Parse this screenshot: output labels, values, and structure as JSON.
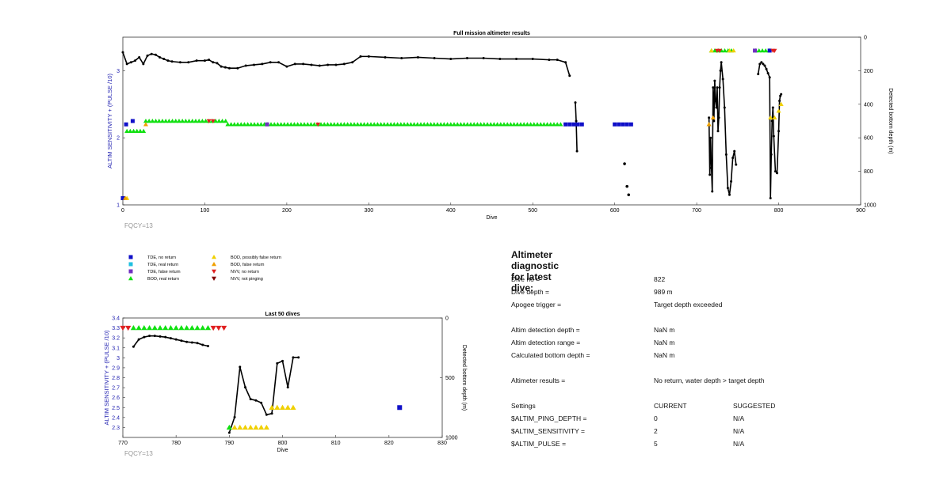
{
  "chart_data": [
    {
      "type": "scatter",
      "title": "Full mission altimeter results",
      "xlabel": "Dive",
      "ylabel_left": "ALTIM SENSITIVITY + (PULSE /10)",
      "ylabel_right": "Detected bottom depth (m)",
      "xlim": [
        0,
        900
      ],
      "ylim_left": [
        1,
        3.5
      ],
      "ylim_right": [
        0,
        1000
      ],
      "xticks": [
        "0",
        "100",
        "200",
        "300",
        "400",
        "500",
        "600",
        "700",
        "800",
        "900"
      ],
      "yticks_left": [
        "1",
        "2",
        "3"
      ],
      "yticks_right": [
        "0",
        "200",
        "400",
        "600",
        "800",
        "1000"
      ],
      "note": "FQCY=13",
      "bottom_depth_curve": {
        "x": [
          0,
          5,
          10,
          15,
          20,
          25,
          30,
          35,
          40,
          45,
          50,
          55,
          60,
          70,
          80,
          90,
          100,
          105,
          110,
          115,
          120,
          125,
          130,
          140,
          150,
          160,
          170,
          180,
          190,
          200,
          210,
          220,
          230,
          240,
          250,
          260,
          270,
          280,
          290,
          300,
          320,
          340,
          360,
          380,
          400,
          420,
          440,
          460,
          480,
          500,
          520,
          530,
          540,
          545
        ],
        "y": [
          90,
          160,
          150,
          140,
          120,
          160,
          110,
          100,
          105,
          120,
          130,
          140,
          145,
          150,
          150,
          140,
          140,
          135,
          150,
          155,
          175,
          180,
          185,
          185,
          170,
          165,
          160,
          150,
          150,
          175,
          160,
          160,
          165,
          170,
          165,
          165,
          160,
          150,
          115,
          115,
          120,
          125,
          120,
          125,
          130,
          125,
          125,
          130,
          130,
          130,
          135,
          135,
          150,
          230
        ]
      },
      "bottom_depth_curve_2": {
        "x": [
          552,
          553,
          554
        ],
        "y": [
          390,
          500,
          680
        ]
      },
      "bottom_depth_points": {
        "x": [
          612,
          615,
          617
        ],
        "y": [
          755,
          890,
          940
        ]
      },
      "bottom_depth_curve_3": {
        "x": [
          715,
          716,
          717,
          718,
          719,
          720,
          721,
          722,
          723,
          724,
          725,
          726,
          727,
          728,
          729,
          730,
          732,
          734,
          736,
          738,
          740,
          742,
          744,
          746,
          748
        ],
        "y": [
          480,
          820,
          600,
          780,
          920,
          300,
          500,
          260,
          380,
          420,
          300,
          560,
          480,
          300,
          200,
          150,
          250,
          420,
          700,
          900,
          940,
          860,
          720,
          680,
          760
        ]
      },
      "bottom_depth_curve_4": {
        "x": [
          775,
          777,
          779,
          781,
          783,
          785,
          787,
          789,
          790,
          791,
          792,
          793,
          794,
          796,
          798,
          800,
          801,
          802,
          803
        ],
        "y": [
          220,
          160,
          150,
          160,
          170,
          190,
          215,
          240,
          960,
          700,
          500,
          420,
          590,
          800,
          810,
          560,
          380,
          350,
          340
        ]
      },
      "series": [
        {
          "name": "TDE, no return",
          "color": "#1010c8",
          "marker": "square",
          "x": [
            0,
            4,
            12,
            540,
            545,
            550,
            555,
            560,
            600,
            605,
            610,
            615,
            620,
            789
          ],
          "y": [
            1.1,
            2.2,
            2.25,
            2.2,
            2.2,
            2.2,
            2.2,
            2.2,
            2.2,
            2.2,
            2.2,
            2.2,
            2.2,
            3.3
          ]
        },
        {
          "name": "BOD, real return",
          "color": "#10e010",
          "band_segments": [
            {
              "x0": 5,
              "x1": 28,
              "y": 2.1
            },
            {
              "x0": 28,
              "x1": 128,
              "y": 2.25
            },
            {
              "x0": 128,
              "x1": 538,
              "y": 2.2
            },
            {
              "x0": 718,
              "x1": 745,
              "y": 3.3
            },
            {
              "x0": 772,
              "x1": 792,
              "y": 3.3
            }
          ],
          "marker": "triangle-up"
        },
        {
          "name": "BOD, possibly false return",
          "color": "#f0d000",
          "marker": "triangle-up",
          "x": [
            5,
            715,
            718,
            740,
            745,
            790,
            795,
            800,
            803
          ],
          "y": [
            1.1,
            2.2,
            3.3,
            3.3,
            3.3,
            2.3,
            2.3,
            2.4,
            2.5
          ]
        },
        {
          "name": "BOD, false return",
          "color": "#f0a000",
          "marker": "triangle-up",
          "x": [
            3,
            28,
            715,
            720
          ],
          "y": [
            1.1,
            2.2,
            2.2,
            2.3
          ]
        },
        {
          "name": "NVV, no return",
          "color": "#e02020",
          "marker": "triangle-down",
          "x": [
            105,
            110,
            238,
            725,
            728,
            793,
            795
          ],
          "y": [
            2.25,
            2.25,
            2.2,
            3.3,
            3.3,
            3.3,
            3.3
          ]
        },
        {
          "name": "TDE, false return",
          "color": "#7030c0",
          "marker": "square",
          "x": [
            176,
            771
          ],
          "y": [
            2.2,
            3.3
          ]
        }
      ]
    },
    {
      "type": "scatter",
      "title": "Last 50 dives",
      "xlabel": "Dive",
      "ylabel_left": "ALTIM SENSITIVITY + (PULSE /10)",
      "ylabel_right": "Detected bottom depth (m)",
      "xlim": [
        770,
        830
      ],
      "ylim_left": [
        2.2,
        3.4
      ],
      "ylim_right": [
        0,
        1000
      ],
      "xticks": [
        "770",
        "780",
        "790",
        "800",
        "810",
        "820",
        "830"
      ],
      "yticks_left": [
        "2.3",
        "2.4",
        "2.5",
        "2.6",
        "2.7",
        "2.8",
        "2.9",
        "3",
        "3.1",
        "3.2",
        "3.3",
        "3.4"
      ],
      "yticks_right": [
        "0",
        "500",
        "1000"
      ],
      "note": "FQCY=13",
      "bottom_depth_curve": {
        "x": [
          772,
          773,
          774,
          775,
          776,
          777,
          778,
          779,
          780,
          781,
          782,
          783,
          784,
          785,
          786
        ],
        "y": [
          240,
          180,
          160,
          150,
          150,
          155,
          160,
          170,
          180,
          190,
          200,
          205,
          210,
          225,
          235
        ]
      },
      "bottom_depth_curve_2": {
        "x": [
          790,
          791,
          792,
          793,
          794,
          795,
          796,
          797,
          798,
          799,
          800,
          801,
          802,
          803
        ],
        "y": [
          960,
          830,
          410,
          580,
          680,
          690,
          710,
          810,
          800,
          380,
          360,
          580,
          330,
          330
        ]
      },
      "series": [
        {
          "name": "NVV, no return",
          "color": "#e02020",
          "marker": "triangle-down",
          "x": [
            770,
            771,
            787,
            788,
            789
          ],
          "y": [
            3.3,
            3.3,
            3.3,
            3.3,
            3.3
          ]
        },
        {
          "name": "BOD, real return",
          "color": "#10e010",
          "marker": "triangle-up",
          "x": [
            772,
            773,
            774,
            775,
            776,
            777,
            778,
            779,
            780,
            781,
            782,
            783,
            784,
            785,
            786,
            790
          ],
          "y": [
            3.3,
            3.3,
            3.3,
            3.3,
            3.3,
            3.3,
            3.3,
            3.3,
            3.3,
            3.3,
            3.3,
            3.3,
            3.3,
            3.3,
            3.3,
            2.3
          ]
        },
        {
          "name": "BOD, possibly false return",
          "color": "#f0d000",
          "marker": "triangle-up",
          "x": [
            791,
            792,
            793,
            794,
            795,
            796,
            797,
            798,
            799,
            800,
            801,
            802
          ],
          "y": [
            2.3,
            2.3,
            2.3,
            2.3,
            2.3,
            2.3,
            2.3,
            2.5,
            2.5,
            2.5,
            2.5,
            2.5
          ]
        },
        {
          "name": "TDE, no return",
          "color": "#1010c8",
          "marker": "square",
          "x": [
            822
          ],
          "y": [
            2.5
          ]
        }
      ]
    }
  ],
  "legend": [
    {
      "label": "TDE, no return",
      "color": "#1010c8",
      "marker": "square"
    },
    {
      "label": "TDE, real return",
      "color": "#20c0e0",
      "marker": "square"
    },
    {
      "label": "TDE, false return",
      "color": "#7030c0",
      "marker": "square"
    },
    {
      "label": "BOD, real return",
      "color": "#10e010",
      "marker": "triangle-up"
    },
    {
      "label": "BOD, possibly false return",
      "color": "#f0d000",
      "marker": "triangle-up"
    },
    {
      "label": "BOD, false return",
      "color": "#f0a000",
      "marker": "triangle-up"
    },
    {
      "label": "NVV, no return",
      "color": "#e02020",
      "marker": "triangle-down"
    },
    {
      "label": "NVV, not pinging",
      "color": "#800000",
      "marker": "triangle-down"
    }
  ],
  "diagnostic": {
    "title": "Altimeter diagnostic for latest dive:",
    "rows": [
      {
        "label": "Dive no =",
        "value": "822"
      },
      {
        "label": "Dive depth =",
        "value": "989 m"
      },
      {
        "label": "Apogee trigger =",
        "value": "Target depth exceeded"
      },
      {
        "label": "Altim detection depth =",
        "value": "NaN m"
      },
      {
        "label": "Altim detection range =",
        "value": "NaN m"
      },
      {
        "label": "Calculated bottom depth =",
        "value": "NaN m"
      },
      {
        "label": "Altimeter results =",
        "value": "No return, water depth > target depth"
      }
    ],
    "settings_header": {
      "label": "Settings",
      "current": "CURRENT",
      "suggested": "SUGGESTED"
    },
    "settings": [
      {
        "label": "$ALTIM_PING_DEPTH =",
        "current": "0",
        "suggested": "N/A"
      },
      {
        "label": "$ALTIM_SENSITIVITY =",
        "current": "2",
        "suggested": "N/A"
      },
      {
        "label": "$ALTIM_PULSE =",
        "current": "5",
        "suggested": "N/A"
      }
    ]
  }
}
